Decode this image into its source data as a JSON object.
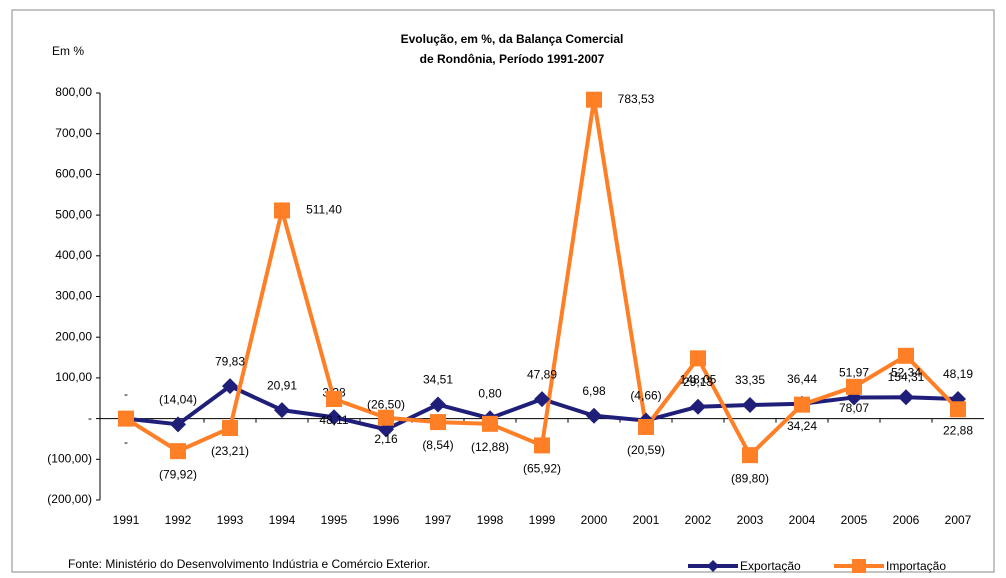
{
  "chart_data": {
    "type": "line",
    "title": [
      "Evolução, em %, da Balança Comercial",
      "de Rondônia, Período 1991-2007"
    ],
    "y_label": "Em %",
    "source": "Fonte: Ministério do Desenvolvimento Indústria e Comércio Exterior.",
    "categories": [
      "1991",
      "1992",
      "1993",
      "1994",
      "1995",
      "1996",
      "1997",
      "1998",
      "1999",
      "2000",
      "2001",
      "2002",
      "2003",
      "2004",
      "2005",
      "2006",
      "2007"
    ],
    "ylim": [
      -200,
      800
    ],
    "yticks": [
      {
        "value": -200,
        "label": "(200,00)"
      },
      {
        "value": -100,
        "label": "(100,00)"
      },
      {
        "value": 0,
        "label": "-"
      },
      {
        "value": 100,
        "label": "100,00"
      },
      {
        "value": 200,
        "label": "200,00"
      },
      {
        "value": 300,
        "label": "300,00"
      },
      {
        "value": 400,
        "label": "400,00"
      },
      {
        "value": 500,
        "label": "500,00"
      },
      {
        "value": 600,
        "label": "600,00"
      },
      {
        "value": 700,
        "label": "700,00"
      },
      {
        "value": 800,
        "label": "800,00"
      }
    ],
    "series": [
      {
        "name": "Exportação",
        "color": "#1f1f7a",
        "marker": "diamond",
        "values": [
          0,
          -14.04,
          79.83,
          20.91,
          3.38,
          -26.5,
          34.51,
          0.8,
          47.89,
          6.98,
          -4.66,
          29.13,
          33.35,
          36.44,
          51.97,
          52.34,
          48.19
        ],
        "value_labels": [
          "-",
          "(14,04)",
          "79,83",
          "20,91",
          "3,38",
          "(26,50)",
          "34,51",
          "0,80",
          "47,89",
          "6,98",
          "(4,66)",
          "29,13",
          "33,35",
          "36,44",
          "51,97",
          "52,34",
          "48,19"
        ]
      },
      {
        "name": "Importação",
        "color": "#ff7f27",
        "marker": "square",
        "values": [
          0,
          -79.92,
          -23.21,
          511.4,
          48.11,
          2.16,
          -8.54,
          -12.88,
          -65.92,
          783.53,
          -20.59,
          148.05,
          -89.8,
          34.24,
          78.07,
          154.31,
          22.88
        ],
        "value_labels": [
          "-",
          "(79,92)",
          "(23,21)",
          "511,40",
          "48,11",
          "2,16",
          "(8,54)",
          "(12,88)",
          "(65,92)",
          "783,53",
          "(20,59)",
          "148,05",
          "(89,80)",
          "34,24",
          "78,07",
          "154,31",
          "22,88"
        ]
      }
    ]
  }
}
